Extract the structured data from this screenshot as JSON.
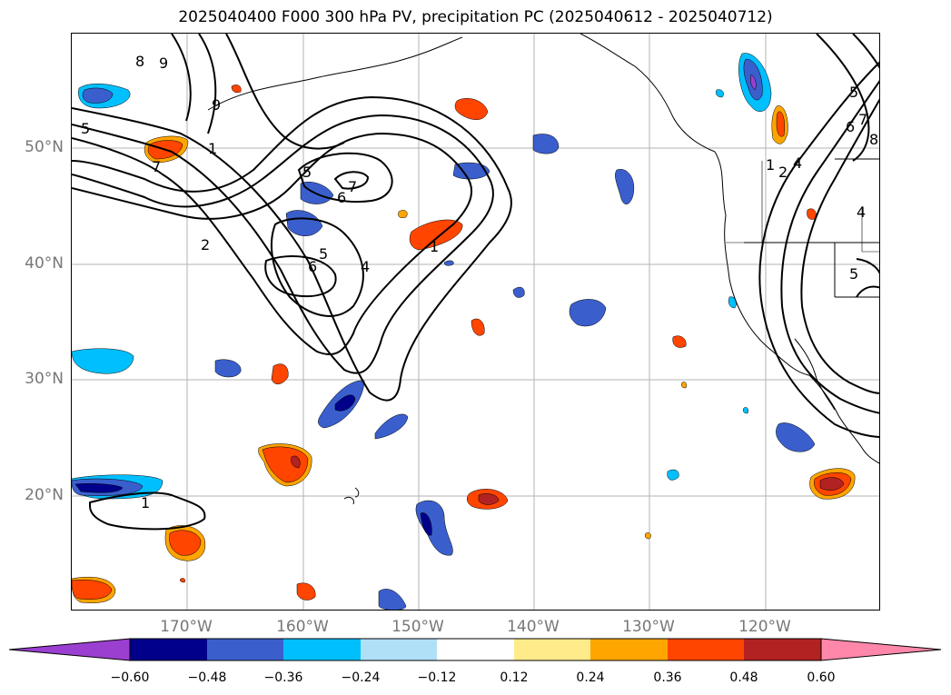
{
  "title": "2025040400 F000 300 hPa PV, precipitation PC (2025040612 - 2025040712)",
  "latitude_labels": [
    "50°N",
    "40°N",
    "30°N",
    "20°N"
  ],
  "longitude_labels": [
    "170°W",
    "160°W",
    "150°W",
    "140°W",
    "130°W",
    "120°W"
  ],
  "contour_labels": [
    "8",
    "9",
    "5",
    "7",
    "1",
    "9",
    "5",
    "7",
    "6",
    "2",
    "5",
    "6",
    "4",
    "1",
    "1",
    "5",
    "6",
    "7",
    "8",
    "1",
    "2",
    "4",
    "4",
    "5"
  ],
  "colorbar": {
    "ticks": [
      "−0.60",
      "−0.48",
      "−0.36",
      "−0.24",
      "−0.12",
      "0.12",
      "0.24",
      "0.36",
      "0.48",
      "0.60"
    ],
    "colors": [
      "#9b3fd1",
      "#00008b",
      "#3a5fcd",
      "#00bfff",
      "#b0e0f8",
      "#ffffff",
      "#ffeb8a",
      "#ffa500",
      "#ff4500",
      "#b22222",
      "#ff88aa"
    ]
  },
  "map": {
    "projection": "lat-lon",
    "lon_range": [
      "180°W",
      "110°W"
    ],
    "lat_range": [
      "10°N",
      "60°N"
    ],
    "grid": true
  }
}
